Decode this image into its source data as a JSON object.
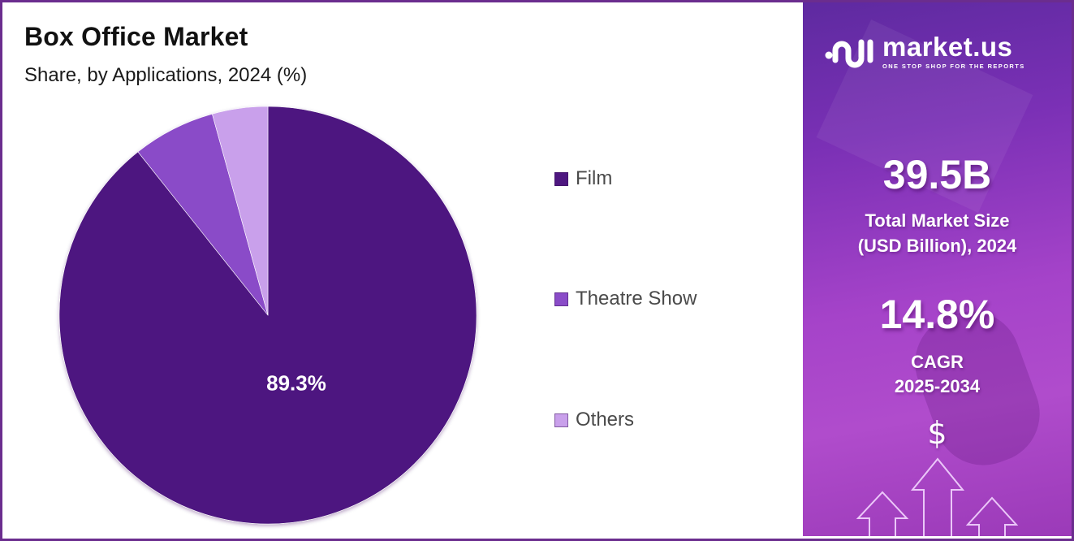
{
  "header": {
    "title": "Box Office Market",
    "subtitle": "Share, by Applications, 2024 (%)"
  },
  "chart_data": {
    "type": "pie",
    "title": "Box Office Market",
    "subtitle": "Share, by Applications, 2024 (%)",
    "categories": [
      "Film",
      "Theatre Show",
      "Others"
    ],
    "values": [
      89.3,
      6.4,
      4.3
    ],
    "colors": [
      "#4e1780",
      "#8a4cc8",
      "#c9a0eb"
    ],
    "data_labels": [
      "89.3%",
      "",
      ""
    ],
    "start_angle": "12 o'clock, clockwise",
    "legend_position": "right"
  },
  "legend": {
    "items": [
      {
        "label": "Film",
        "color": "#4e1780"
      },
      {
        "label": "Theatre Show",
        "color": "#8a4cc8"
      },
      {
        "label": "Others",
        "color": "#c9a0eb"
      }
    ]
  },
  "pie": {
    "label_film": "89.3%"
  },
  "sidebar": {
    "logo_name": "market.us",
    "logo_tagline": "ONE STOP SHOP FOR THE REPORTS",
    "market_size_value": "39.5B",
    "market_size_caption_line1": "Total Market Size",
    "market_size_caption_line2": "(USD Billion), 2024",
    "cagr_value": "14.8%",
    "cagr_caption_line1": "CAGR",
    "cagr_caption_line2": "2025-2034",
    "dollar_symbol": "$"
  },
  "colors": {
    "frame": "#6b2d8e",
    "panel_gradient_top": "#5e2aa0",
    "panel_gradient_bottom": "#b04ccc"
  }
}
